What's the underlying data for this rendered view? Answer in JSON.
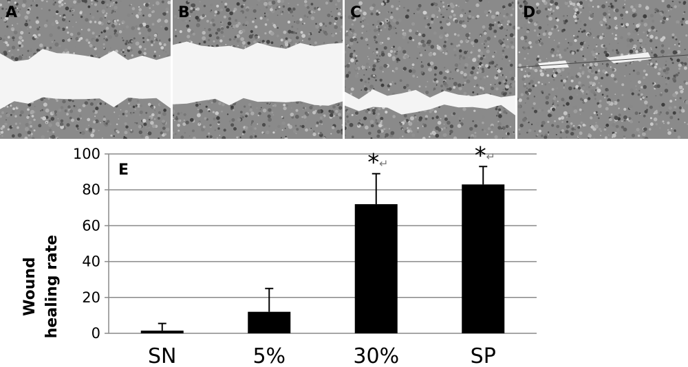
{
  "panels": [
    {
      "letter": "A",
      "gap": "wide"
    },
    {
      "letter": "B",
      "gap": "wide"
    },
    {
      "letter": "C",
      "gap": "narrow"
    },
    {
      "letter": "D",
      "gap": "minimal"
    }
  ],
  "chart_data": {
    "type": "bar",
    "panel_label": "E",
    "categories": [
      "SN",
      "5%",
      "30%",
      "SP"
    ],
    "values": [
      1.5,
      12,
      72,
      83
    ],
    "errors": [
      4,
      13,
      17,
      10
    ],
    "significance": [
      "",
      "",
      "*",
      "*"
    ],
    "significance_suffix": "↵",
    "ylabel_lines": [
      "Wound",
      "healing rate"
    ],
    "xlabel": "",
    "ylim": [
      0,
      100
    ],
    "yticks": [
      0,
      20,
      40,
      60,
      80,
      100
    ],
    "grid": true,
    "bar_color": "#000000",
    "grid_color": "#888888"
  }
}
